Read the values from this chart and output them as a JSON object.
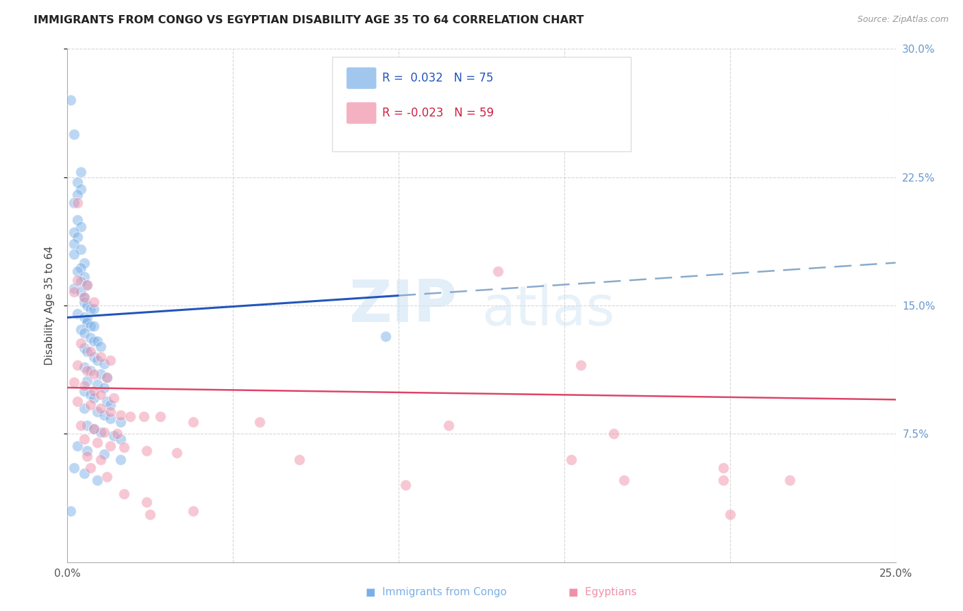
{
  "title": "IMMIGRANTS FROM CONGO VS EGYPTIAN DISABILITY AGE 35 TO 64 CORRELATION CHART",
  "source": "Source: ZipAtlas.com",
  "ylabel": "Disability Age 35 to 64",
  "xlim": [
    0.0,
    0.25
  ],
  "ylim": [
    0.0,
    0.3
  ],
  "congo_color": "#7ab0e8",
  "egypt_color": "#f090a8",
  "congo_line_color": "#2255bb",
  "egypt_line_color": "#dd4466",
  "background_color": "#ffffff",
  "grid_color": "#cccccc",
  "congo_line": [
    0.0,
    0.143,
    0.25,
    0.175
  ],
  "egypt_line": [
    0.0,
    0.102,
    0.25,
    0.095
  ],
  "congo_points": [
    [
      0.001,
      0.27
    ],
    [
      0.002,
      0.25
    ],
    [
      0.004,
      0.228
    ],
    [
      0.003,
      0.222
    ],
    [
      0.004,
      0.218
    ],
    [
      0.003,
      0.215
    ],
    [
      0.002,
      0.21
    ],
    [
      0.003,
      0.2
    ],
    [
      0.004,
      0.196
    ],
    [
      0.002,
      0.193
    ],
    [
      0.003,
      0.19
    ],
    [
      0.002,
      0.186
    ],
    [
      0.004,
      0.183
    ],
    [
      0.002,
      0.18
    ],
    [
      0.005,
      0.175
    ],
    [
      0.004,
      0.172
    ],
    [
      0.003,
      0.17
    ],
    [
      0.005,
      0.167
    ],
    [
      0.004,
      0.164
    ],
    [
      0.006,
      0.162
    ],
    [
      0.002,
      0.16
    ],
    [
      0.004,
      0.158
    ],
    [
      0.005,
      0.155
    ],
    [
      0.005,
      0.152
    ],
    [
      0.006,
      0.15
    ],
    [
      0.007,
      0.148
    ],
    [
      0.008,
      0.148
    ],
    [
      0.003,
      0.145
    ],
    [
      0.005,
      0.143
    ],
    [
      0.006,
      0.142
    ],
    [
      0.006,
      0.14
    ],
    [
      0.007,
      0.138
    ],
    [
      0.008,
      0.138
    ],
    [
      0.004,
      0.136
    ],
    [
      0.005,
      0.134
    ],
    [
      0.007,
      0.131
    ],
    [
      0.008,
      0.129
    ],
    [
      0.009,
      0.129
    ],
    [
      0.01,
      0.126
    ],
    [
      0.005,
      0.125
    ],
    [
      0.006,
      0.123
    ],
    [
      0.008,
      0.12
    ],
    [
      0.009,
      0.118
    ],
    [
      0.011,
      0.116
    ],
    [
      0.005,
      0.114
    ],
    [
      0.007,
      0.112
    ],
    [
      0.01,
      0.11
    ],
    [
      0.012,
      0.108
    ],
    [
      0.006,
      0.106
    ],
    [
      0.009,
      0.104
    ],
    [
      0.011,
      0.102
    ],
    [
      0.005,
      0.1
    ],
    [
      0.007,
      0.098
    ],
    [
      0.008,
      0.096
    ],
    [
      0.012,
      0.094
    ],
    [
      0.013,
      0.092
    ],
    [
      0.005,
      0.09
    ],
    [
      0.009,
      0.088
    ],
    [
      0.011,
      0.086
    ],
    [
      0.013,
      0.084
    ],
    [
      0.016,
      0.082
    ],
    [
      0.006,
      0.08
    ],
    [
      0.096,
      0.132
    ],
    [
      0.008,
      0.078
    ],
    [
      0.01,
      0.076
    ],
    [
      0.014,
      0.074
    ],
    [
      0.016,
      0.072
    ],
    [
      0.003,
      0.068
    ],
    [
      0.006,
      0.065
    ],
    [
      0.011,
      0.063
    ],
    [
      0.016,
      0.06
    ],
    [
      0.002,
      0.055
    ],
    [
      0.005,
      0.052
    ],
    [
      0.009,
      0.048
    ],
    [
      0.001,
      0.03
    ]
  ],
  "egypt_points": [
    [
      0.003,
      0.21
    ],
    [
      0.13,
      0.17
    ],
    [
      0.003,
      0.165
    ],
    [
      0.006,
      0.162
    ],
    [
      0.002,
      0.158
    ],
    [
      0.005,
      0.155
    ],
    [
      0.008,
      0.152
    ],
    [
      0.004,
      0.128
    ],
    [
      0.007,
      0.123
    ],
    [
      0.01,
      0.12
    ],
    [
      0.013,
      0.118
    ],
    [
      0.003,
      0.115
    ],
    [
      0.006,
      0.112
    ],
    [
      0.008,
      0.11
    ],
    [
      0.012,
      0.108
    ],
    [
      0.155,
      0.115
    ],
    [
      0.002,
      0.105
    ],
    [
      0.005,
      0.103
    ],
    [
      0.008,
      0.1
    ],
    [
      0.01,
      0.098
    ],
    [
      0.014,
      0.096
    ],
    [
      0.003,
      0.094
    ],
    [
      0.007,
      0.092
    ],
    [
      0.01,
      0.09
    ],
    [
      0.013,
      0.088
    ],
    [
      0.016,
      0.086
    ],
    [
      0.019,
      0.085
    ],
    [
      0.023,
      0.085
    ],
    [
      0.028,
      0.085
    ],
    [
      0.038,
      0.082
    ],
    [
      0.058,
      0.082
    ],
    [
      0.004,
      0.08
    ],
    [
      0.008,
      0.078
    ],
    [
      0.011,
      0.076
    ],
    [
      0.015,
      0.075
    ],
    [
      0.115,
      0.08
    ],
    [
      0.005,
      0.072
    ],
    [
      0.009,
      0.07
    ],
    [
      0.013,
      0.068
    ],
    [
      0.017,
      0.067
    ],
    [
      0.024,
      0.065
    ],
    [
      0.033,
      0.064
    ],
    [
      0.165,
      0.075
    ],
    [
      0.006,
      0.062
    ],
    [
      0.01,
      0.06
    ],
    [
      0.152,
      0.06
    ],
    [
      0.007,
      0.055
    ],
    [
      0.012,
      0.05
    ],
    [
      0.102,
      0.045
    ],
    [
      0.198,
      0.048
    ],
    [
      0.017,
      0.04
    ],
    [
      0.024,
      0.035
    ],
    [
      0.038,
      0.03
    ],
    [
      0.218,
      0.048
    ],
    [
      0.168,
      0.048
    ],
    [
      0.198,
      0.055
    ],
    [
      0.025,
      0.028
    ],
    [
      0.07,
      0.06
    ],
    [
      0.2,
      0.028
    ]
  ]
}
